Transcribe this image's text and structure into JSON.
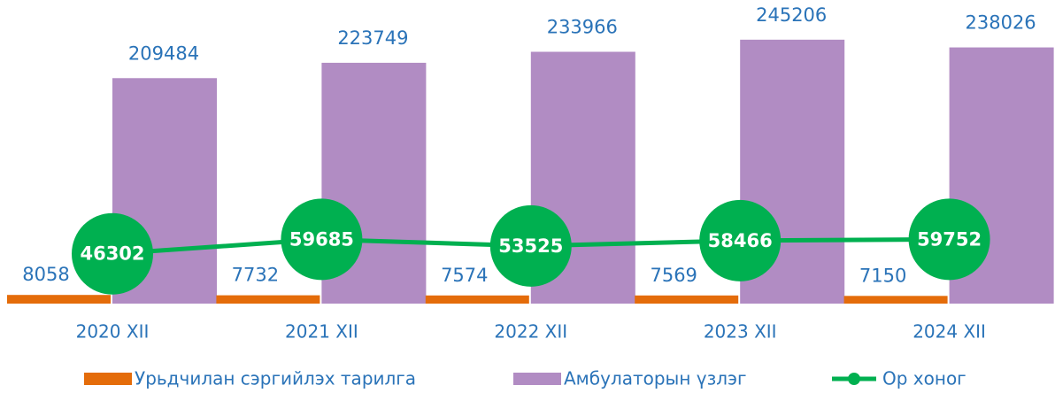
{
  "chart_data": {
    "type": "bar",
    "categories": [
      "2020 XII",
      "2021 XII",
      "2022 XII",
      "2023 XII",
      "2024 XII"
    ],
    "series": [
      {
        "name": "Урьдчилан сэргийлэх тарилга",
        "color": "#e46c0a",
        "type": "bar",
        "values": [
          8058,
          7732,
          7574,
          7569,
          7150
        ]
      },
      {
        "name": "Амбулаторын үзлэг",
        "color": "#b18cc3",
        "type": "bar",
        "values": [
          209484,
          223749,
          233966,
          245206,
          238026
        ]
      },
      {
        "name": "Ор хоног",
        "color": "#00b050",
        "type": "line",
        "values": [
          46302,
          59685,
          53525,
          58466,
          59752
        ]
      }
    ],
    "ylim": [
      0,
      250000
    ],
    "legend": "bottom"
  }
}
